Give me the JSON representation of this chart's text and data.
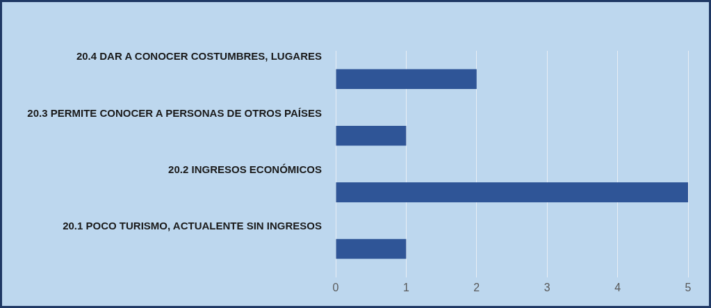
{
  "chart_data": {
    "type": "bar",
    "orientation": "horizontal",
    "categories": [
      "20.4 DAR A CONOCER COSTUMBRES, LUGARES",
      "20.3 PERMITE CONOCER A PERSONAS DE OTROS PAÍSES",
      "20.2 INGRESOS ECONÓMICOS",
      "20.1 POCO TURISMO, ACTUALENTE SIN INGRESOS"
    ],
    "values": [
      2,
      1,
      5,
      1
    ],
    "color": "#2f5597",
    "xlim": [
      0,
      5
    ],
    "xticks": [
      0,
      1,
      2,
      3,
      4,
      5
    ],
    "grid": "x",
    "legend": false
  }
}
